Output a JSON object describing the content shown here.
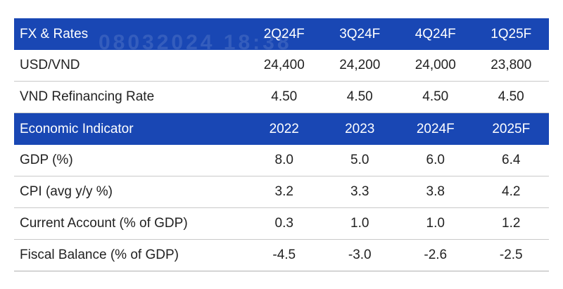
{
  "fx_section": {
    "header": [
      "FX & Rates",
      "2Q24F",
      "3Q24F",
      "4Q24F",
      "1Q25F"
    ],
    "rows": [
      {
        "label": "USD/VND",
        "values": [
          "24,400",
          "24,200",
          "24,000",
          "23,800"
        ]
      },
      {
        "label": "VND Refinancing Rate",
        "values": [
          "4.50",
          "4.50",
          "4.50",
          "4.50"
        ]
      }
    ]
  },
  "economic_section": {
    "header": [
      "Economic Indicator",
      "2022",
      "2023",
      "2024F",
      "2025F"
    ],
    "rows": [
      {
        "label": "GDP (%)",
        "values": [
          "8.0",
          "5.0",
          "6.0",
          "6.4"
        ]
      },
      {
        "label": "CPI (avg y/y %)",
        "values": [
          "3.2",
          "3.3",
          "3.8",
          "4.2"
        ]
      },
      {
        "label": "Current Account (% of GDP)",
        "values": [
          "0.3",
          "1.0",
          "1.0",
          "1.2"
        ]
      },
      {
        "label": "Fiscal Balance (% of GDP)",
        "values": [
          "-4.5",
          "-3.0",
          "-2.6",
          "-2.5"
        ]
      }
    ]
  },
  "watermark": "08032024 18:38",
  "colors": {
    "header_bg": "#1947b4",
    "header_text": "#ffffff",
    "body_text": "#222222",
    "row_divider": "#c9c9c9"
  }
}
